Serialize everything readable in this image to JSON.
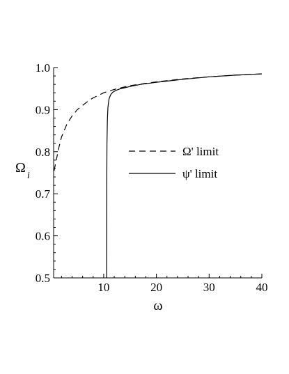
{
  "chart_data": {
    "type": "line",
    "xlabel": "ω",
    "ylabel": "Ω",
    "ylabel_subscript": "i",
    "xlim": [
      0.5,
      40
    ],
    "ylim": [
      0.5,
      1.0
    ],
    "x_ticks": [
      10,
      20,
      30,
      40
    ],
    "y_ticks": [
      0.5,
      0.6,
      0.7,
      0.8,
      0.9,
      1.0
    ],
    "x_tick_labels": [
      "10",
      "20",
      "30",
      "40"
    ],
    "y_tick_labels": [
      "0.5",
      "0.6",
      "0.7",
      "0.8",
      "0.9",
      "1.0"
    ],
    "grid": false,
    "legend_position": "center-right",
    "series": [
      {
        "name": "Ω' limit",
        "style": "dashed",
        "color": "#000000",
        "x": [
          0.6,
          1.0,
          1.5,
          2.0,
          3.0,
          4.0,
          5.0,
          6.0,
          7.0,
          8.0,
          10.0,
          12.0,
          15.0,
          20.0,
          25.0,
          30.0,
          35.0,
          40.0
        ],
        "y": [
          0.755,
          0.78,
          0.81,
          0.835,
          0.865,
          0.885,
          0.9,
          0.91,
          0.92,
          0.928,
          0.94,
          0.948,
          0.957,
          0.966,
          0.973,
          0.978,
          0.982,
          0.985
        ]
      },
      {
        "name": "ψ' limit",
        "style": "solid",
        "color": "#000000",
        "x": [
          10.55,
          10.56,
          10.58,
          10.62,
          10.7,
          10.8,
          11.0,
          11.3,
          11.7,
          12.2,
          13.0,
          14.0,
          15.0,
          17.0,
          20.0,
          25.0,
          30.0,
          35.0,
          40.0
        ],
        "y": [
          0.5,
          0.6,
          0.72,
          0.82,
          0.875,
          0.905,
          0.925,
          0.935,
          0.941,
          0.945,
          0.949,
          0.952,
          0.955,
          0.96,
          0.965,
          0.972,
          0.978,
          0.982,
          0.985
        ]
      }
    ]
  }
}
